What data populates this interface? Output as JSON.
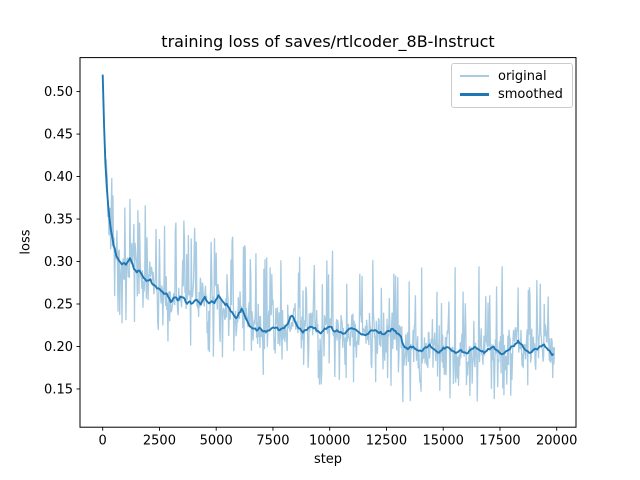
{
  "figure": {
    "title": "training loss of saves/rtlcoder_8B-Instruct",
    "xlabel": "step",
    "ylabel": "loss"
  },
  "legend": {
    "position": "upper right",
    "items": [
      {
        "label": "original"
      },
      {
        "label": "smoothed"
      }
    ]
  },
  "chart_data": {
    "type": "line",
    "title": "training loss of saves/rtlcoder_8B-Instruct",
    "xlabel": "step",
    "ylabel": "loss",
    "xlim": [
      -1000,
      20850
    ],
    "ylim": [
      0.105,
      0.54
    ],
    "x_ticks": [
      0,
      2500,
      5000,
      7500,
      10000,
      12500,
      15000,
      17500,
      20000
    ],
    "y_ticks": [
      0.15,
      0.2,
      0.25,
      0.3,
      0.35,
      0.4,
      0.45,
      0.5
    ],
    "grid": false,
    "legend_position": "upper right",
    "series": [
      {
        "name": "original",
        "color": "#a8cbe2",
        "style": "noisy-raw",
        "note": "raw loss oscillates tightly around the smoothed curve; envelope rows are [step, min, max] read from the plot",
        "envelope": [
          [
            0,
            0.505,
            0.518
          ],
          [
            100,
            0.4,
            0.44
          ],
          [
            200,
            0.3,
            0.41
          ],
          [
            400,
            0.26,
            0.4
          ],
          [
            600,
            0.235,
            0.4
          ],
          [
            1000,
            0.215,
            0.4
          ],
          [
            1500,
            0.21,
            0.375
          ],
          [
            2000,
            0.2,
            0.365
          ],
          [
            2500,
            0.2,
            0.355
          ],
          [
            3000,
            0.195,
            0.35
          ],
          [
            3500,
            0.19,
            0.35
          ],
          [
            4000,
            0.19,
            0.34
          ],
          [
            4600,
            0.185,
            0.38
          ],
          [
            5000,
            0.185,
            0.34
          ],
          [
            5500,
            0.18,
            0.33
          ],
          [
            6000,
            0.175,
            0.335
          ],
          [
            6500,
            0.17,
            0.32
          ],
          [
            7000,
            0.165,
            0.31
          ],
          [
            7500,
            0.155,
            0.315
          ],
          [
            8000,
            0.15,
            0.32
          ],
          [
            8300,
            0.16,
            0.335
          ],
          [
            8600,
            0.155,
            0.31
          ],
          [
            9000,
            0.16,
            0.3
          ],
          [
            9500,
            0.155,
            0.305
          ],
          [
            10000,
            0.155,
            0.31
          ],
          [
            10500,
            0.15,
            0.322
          ],
          [
            11000,
            0.155,
            0.3
          ],
          [
            11500,
            0.15,
            0.31
          ],
          [
            12000,
            0.15,
            0.3
          ],
          [
            12500,
            0.145,
            0.3
          ],
          [
            13000,
            0.14,
            0.295
          ],
          [
            13350,
            0.125,
            0.29
          ],
          [
            13700,
            0.14,
            0.29
          ],
          [
            14000,
            0.14,
            0.3
          ],
          [
            14500,
            0.14,
            0.295
          ],
          [
            15000,
            0.135,
            0.29
          ],
          [
            15500,
            0.14,
            0.3
          ],
          [
            16000,
            0.135,
            0.295
          ],
          [
            16500,
            0.135,
            0.3
          ],
          [
            17000,
            0.13,
            0.29
          ],
          [
            17500,
            0.135,
            0.295
          ],
          [
            18000,
            0.13,
            0.3
          ],
          [
            18500,
            0.13,
            0.29
          ],
          [
            18900,
            0.128,
            0.285
          ],
          [
            19400,
            0.14,
            0.29
          ],
          [
            19900,
            0.15,
            0.265
          ]
        ]
      },
      {
        "name": "smoothed",
        "color": "#1f77b4",
        "points": [
          [
            0,
            0.52
          ],
          [
            40,
            0.478
          ],
          [
            80,
            0.443
          ],
          [
            120,
            0.415
          ],
          [
            160,
            0.395
          ],
          [
            200,
            0.38
          ],
          [
            250,
            0.363
          ],
          [
            300,
            0.35
          ],
          [
            350,
            0.34
          ],
          [
            400,
            0.331
          ],
          [
            450,
            0.323
          ],
          [
            500,
            0.316
          ],
          [
            600,
            0.307
          ],
          [
            700,
            0.302
          ],
          [
            800,
            0.299
          ],
          [
            900,
            0.297
          ],
          [
            1000,
            0.296
          ],
          [
            1100,
            0.3
          ],
          [
            1200,
            0.304
          ],
          [
            1300,
            0.297
          ],
          [
            1400,
            0.291
          ],
          [
            1500,
            0.287
          ],
          [
            1600,
            0.29
          ],
          [
            1700,
            0.285
          ],
          [
            1800,
            0.281
          ],
          [
            1900,
            0.278
          ],
          [
            2000,
            0.277
          ],
          [
            2100,
            0.28
          ],
          [
            2200,
            0.274
          ],
          [
            2300,
            0.271
          ],
          [
            2400,
            0.269
          ],
          [
            2500,
            0.268
          ],
          [
            2600,
            0.265
          ],
          [
            2700,
            0.262
          ],
          [
            2800,
            0.263
          ],
          [
            2900,
            0.258
          ],
          [
            3000,
            0.252
          ],
          [
            3100,
            0.256
          ],
          [
            3200,
            0.259
          ],
          [
            3300,
            0.255
          ],
          [
            3400,
            0.257
          ],
          [
            3500,
            0.26
          ],
          [
            3600,
            0.256
          ],
          [
            3700,
            0.25
          ],
          [
            3800,
            0.253
          ],
          [
            3900,
            0.25
          ],
          [
            4000,
            0.252
          ],
          [
            4100,
            0.256
          ],
          [
            4200,
            0.253
          ],
          [
            4300,
            0.249
          ],
          [
            4400,
            0.254
          ],
          [
            4500,
            0.257
          ],
          [
            4600,
            0.253
          ],
          [
            4700,
            0.25
          ],
          [
            4800,
            0.254
          ],
          [
            4900,
            0.251
          ],
          [
            5000,
            0.255
          ],
          [
            5100,
            0.26
          ],
          [
            5200,
            0.257
          ],
          [
            5300,
            0.252
          ],
          [
            5400,
            0.25
          ],
          [
            5500,
            0.248
          ],
          [
            5600,
            0.244
          ],
          [
            5700,
            0.24
          ],
          [
            5800,
            0.236
          ],
          [
            5900,
            0.234
          ],
          [
            6000,
            0.239
          ],
          [
            6100,
            0.244
          ],
          [
            6200,
            0.24
          ],
          [
            6300,
            0.233
          ],
          [
            6400,
            0.228
          ],
          [
            6500,
            0.224
          ],
          [
            6600,
            0.221
          ],
          [
            6700,
            0.22
          ],
          [
            6800,
            0.219
          ],
          [
            6900,
            0.222
          ],
          [
            7000,
            0.219
          ],
          [
            7200,
            0.217
          ],
          [
            7400,
            0.221
          ],
          [
            7600,
            0.223
          ],
          [
            7800,
            0.219
          ],
          [
            8000,
            0.222
          ],
          [
            8200,
            0.229
          ],
          [
            8300,
            0.237
          ],
          [
            8450,
            0.231
          ],
          [
            8600,
            0.223
          ],
          [
            8800,
            0.217
          ],
          [
            9000,
            0.22
          ],
          [
            9200,
            0.225
          ],
          [
            9400,
            0.219
          ],
          [
            9600,
            0.215
          ],
          [
            9800,
            0.221
          ],
          [
            10000,
            0.224
          ],
          [
            10200,
            0.219
          ],
          [
            10400,
            0.217
          ],
          [
            10600,
            0.215
          ],
          [
            10800,
            0.219
          ],
          [
            11000,
            0.222
          ],
          [
            11200,
            0.219
          ],
          [
            11400,
            0.215
          ],
          [
            11600,
            0.213
          ],
          [
            11800,
            0.218
          ],
          [
            12000,
            0.22
          ],
          [
            12200,
            0.216
          ],
          [
            12400,
            0.214
          ],
          [
            12600,
            0.218
          ],
          [
            12800,
            0.22
          ],
          [
            13000,
            0.215
          ],
          [
            13150,
            0.211
          ],
          [
            13250,
            0.201
          ],
          [
            13400,
            0.197
          ],
          [
            13600,
            0.2
          ],
          [
            13800,
            0.196
          ],
          [
            14000,
            0.194
          ],
          [
            14200,
            0.198
          ],
          [
            14400,
            0.201
          ],
          [
            14600,
            0.196
          ],
          [
            14800,
            0.193
          ],
          [
            15000,
            0.197
          ],
          [
            15200,
            0.2
          ],
          [
            15400,
            0.195
          ],
          [
            15600,
            0.192
          ],
          [
            15800,
            0.196
          ],
          [
            16000,
            0.191
          ],
          [
            16200,
            0.195
          ],
          [
            16400,
            0.199
          ],
          [
            16600,
            0.196
          ],
          [
            16800,
            0.193
          ],
          [
            17000,
            0.197
          ],
          [
            17200,
            0.2
          ],
          [
            17400,
            0.194
          ],
          [
            17600,
            0.191
          ],
          [
            17800,
            0.195
          ],
          [
            18000,
            0.199
          ],
          [
            18200,
            0.204
          ],
          [
            18300,
            0.207
          ],
          [
            18450,
            0.202
          ],
          [
            18600,
            0.197
          ],
          [
            18800,
            0.192
          ],
          [
            19000,
            0.196
          ],
          [
            19200,
            0.199
          ],
          [
            19400,
            0.202
          ],
          [
            19600,
            0.197
          ],
          [
            19800,
            0.191
          ],
          [
            19900,
            0.19
          ]
        ]
      }
    ]
  }
}
